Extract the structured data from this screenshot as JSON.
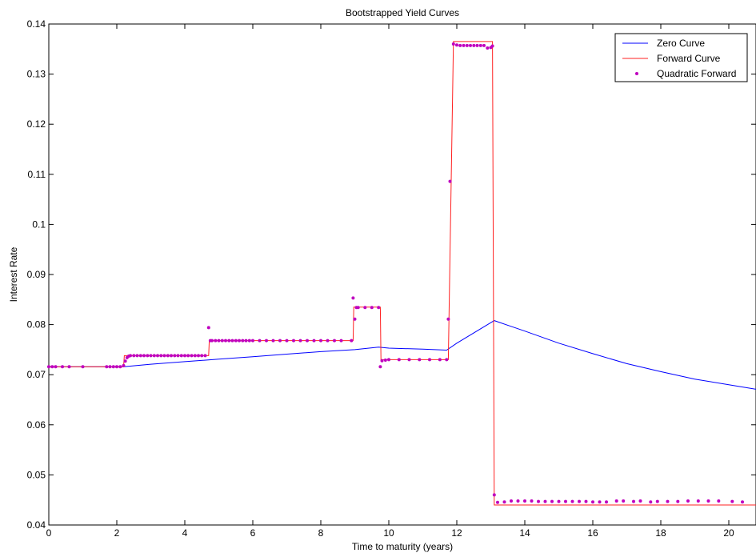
{
  "chart_data": {
    "type": "line",
    "title": "Bootstrapped Yield Curves",
    "xlabel": "Time to maturity (years)",
    "ylabel": "Interest Rate",
    "xlim": [
      0,
      20.8
    ],
    "ylim": [
      0.04,
      0.14
    ],
    "xticks": [
      0,
      2,
      4,
      6,
      8,
      10,
      12,
      14,
      16,
      18,
      20
    ],
    "yticks": [
      0.04,
      0.05,
      0.06,
      0.07,
      0.08,
      0.09,
      0.1,
      0.11,
      0.12,
      0.13,
      0.14
    ],
    "ytick_labels": [
      "0.04",
      "0.05",
      "0.06",
      "0.07",
      "0.08",
      "0.09",
      "0.1",
      "0.11",
      "0.12",
      "0.13",
      "0.14"
    ],
    "grid": false,
    "legend_position": "top-right",
    "colors": {
      "zero": "#0000ff",
      "forward": "#ff2020",
      "quadratic": "#bf00bf"
    },
    "series": [
      {
        "name": "Zero Curve",
        "style": "line",
        "x": [
          0,
          2.2,
          3,
          4,
          5,
          6,
          7,
          8,
          9,
          9.7,
          10,
          11,
          11.7,
          12,
          13.1,
          14,
          15,
          16,
          17,
          18,
          19,
          20,
          20.8
        ],
        "y": [
          0.0716,
          0.0716,
          0.0721,
          0.0726,
          0.0731,
          0.0736,
          0.0741,
          0.0746,
          0.075,
          0.0755,
          0.0753,
          0.0751,
          0.0749,
          0.0763,
          0.0808,
          0.0787,
          0.0763,
          0.0742,
          0.0722,
          0.0706,
          0.0691,
          0.068,
          0.0671
        ]
      },
      {
        "name": "Forward Curve",
        "style": "line",
        "x": [
          0,
          2.2,
          2.22,
          4.7,
          4.72,
          8.95,
          8.97,
          9.75,
          9.77,
          11.75,
          11.9,
          13.05,
          13.1,
          20.8
        ],
        "y": [
          0.0716,
          0.0716,
          0.0738,
          0.0738,
          0.0768,
          0.0768,
          0.0835,
          0.0835,
          0.073,
          0.073,
          0.1365,
          0.1365,
          0.044,
          0.044
        ]
      },
      {
        "name": "Quadratic Forward",
        "style": "markers",
        "x": [
          0,
          0.1,
          0.2,
          0.4,
          0.6,
          1.0,
          1.7,
          1.8,
          1.9,
          2.0,
          2.1,
          2.2,
          2.25,
          2.3,
          2.35,
          2.4,
          2.5,
          2.6,
          2.7,
          2.8,
          2.9,
          3.0,
          3.1,
          3.2,
          3.3,
          3.4,
          3.5,
          3.6,
          3.7,
          3.8,
          3.9,
          4.0,
          4.1,
          4.2,
          4.3,
          4.4,
          4.5,
          4.6,
          4.7,
          4.75,
          4.8,
          4.9,
          5.0,
          5.1,
          5.2,
          5.3,
          5.4,
          5.5,
          5.6,
          5.7,
          5.8,
          5.9,
          6.0,
          6.2,
          6.4,
          6.6,
          6.8,
          7.0,
          7.2,
          7.4,
          7.6,
          7.8,
          8.0,
          8.2,
          8.4,
          8.6,
          8.9,
          8.95,
          9.0,
          9.05,
          9.1,
          9.3,
          9.5,
          9.7,
          9.75,
          9.8,
          9.9,
          10.0,
          10.3,
          10.6,
          10.9,
          11.2,
          11.5,
          11.7,
          11.75,
          11.8,
          11.9,
          12.0,
          12.1,
          12.2,
          12.3,
          12.4,
          12.5,
          12.6,
          12.7,
          12.8,
          12.9,
          13.0,
          13.05,
          13.1,
          13.2,
          13.4,
          13.6,
          13.8,
          14.0,
          14.2,
          14.4,
          14.6,
          14.8,
          15.0,
          15.2,
          15.4,
          15.6,
          15.8,
          16.0,
          16.2,
          16.4,
          16.7,
          16.9,
          17.2,
          17.4,
          17.7,
          17.9,
          18.2,
          18.5,
          18.8,
          19.1,
          19.4,
          19.7,
          20.1,
          20.4
        ],
        "y": [
          0.0716,
          0.0716,
          0.0716,
          0.0716,
          0.0716,
          0.0716,
          0.0716,
          0.0716,
          0.0716,
          0.0716,
          0.0716,
          0.0718,
          0.0727,
          0.0734,
          0.0737,
          0.0738,
          0.0738,
          0.0738,
          0.0738,
          0.0738,
          0.0738,
          0.0738,
          0.0738,
          0.0738,
          0.0738,
          0.0738,
          0.0738,
          0.0738,
          0.0738,
          0.0738,
          0.0738,
          0.0738,
          0.0738,
          0.0738,
          0.0738,
          0.0738,
          0.0738,
          0.0738,
          0.0794,
          0.0768,
          0.0768,
          0.0768,
          0.0768,
          0.0768,
          0.0768,
          0.0768,
          0.0768,
          0.0768,
          0.0768,
          0.0768,
          0.0768,
          0.0768,
          0.0768,
          0.0768,
          0.0768,
          0.0768,
          0.0768,
          0.0768,
          0.0768,
          0.0768,
          0.0768,
          0.0768,
          0.0768,
          0.0768,
          0.0768,
          0.0768,
          0.0768,
          0.0853,
          0.0811,
          0.0834,
          0.0834,
          0.0834,
          0.0834,
          0.0834,
          0.0716,
          0.0728,
          0.0729,
          0.073,
          0.073,
          0.073,
          0.073,
          0.073,
          0.073,
          0.073,
          0.0811,
          0.1086,
          0.136,
          0.1358,
          0.1357,
          0.1357,
          0.1357,
          0.1357,
          0.1357,
          0.1357,
          0.1357,
          0.1357,
          0.1352,
          0.1353,
          0.1356,
          0.046,
          0.0445,
          0.0446,
          0.0448,
          0.0448,
          0.0448,
          0.0448,
          0.0447,
          0.0447,
          0.0447,
          0.0447,
          0.0447,
          0.0447,
          0.0447,
          0.0447,
          0.0446,
          0.0446,
          0.0446,
          0.0448,
          0.0448,
          0.0447,
          0.0448,
          0.0446,
          0.0447,
          0.0447,
          0.0447,
          0.0448,
          0.0448,
          0.0448,
          0.0448,
          0.0447,
          0.0446
        ]
      }
    ]
  }
}
